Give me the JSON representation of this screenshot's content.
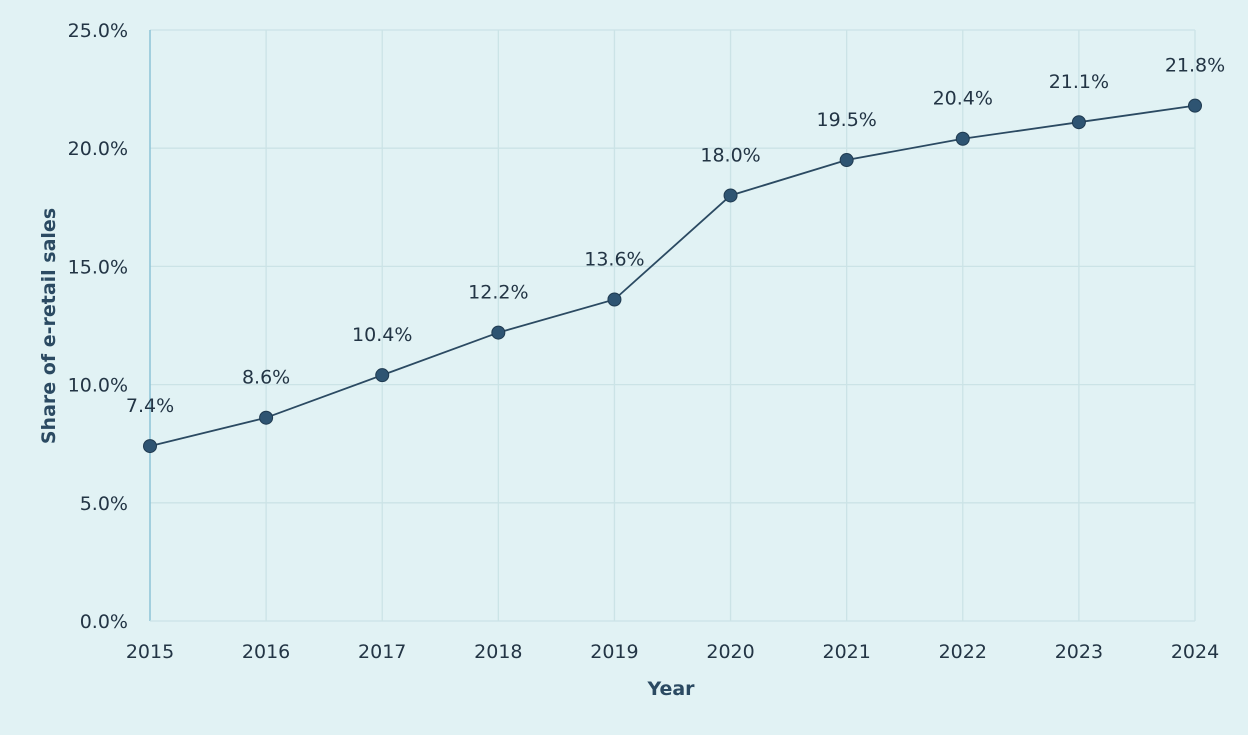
{
  "chart_data": {
    "type": "line",
    "title": "",
    "xlabel": "Year",
    "ylabel": "Share of e-retail sales",
    "categories": [
      "2015",
      "2016",
      "2017",
      "2018",
      "2019",
      "2020",
      "2021",
      "2022",
      "2023",
      "2024"
    ],
    "series": [
      {
        "values": [
          7.4,
          8.6,
          10.4,
          12.2,
          13.6,
          18.0,
          19.5,
          20.4,
          21.1,
          21.8
        ],
        "data_labels": [
          "7.4%",
          "8.6%",
          "10.4%",
          "12.2%",
          "13.6%",
          "18.0%",
          "19.5%",
          "20.4%",
          "21.1%",
          "21.8%"
        ]
      }
    ],
    "ylim": [
      0,
      25
    ],
    "yticks": [
      0,
      5,
      10,
      15,
      20,
      25
    ],
    "ytick_labels": [
      "0.0%",
      "5.0%",
      "10.0%",
      "15.0%",
      "20.0%",
      "25.0%"
    ],
    "grid": true,
    "legend": "none",
    "colors": {
      "background": "#e1f2f4",
      "line": "#2b4a62",
      "marker": "#2e5472",
      "grid": "#cbe3e6",
      "axis": "#8dc3d6",
      "text": "#233545"
    }
  }
}
